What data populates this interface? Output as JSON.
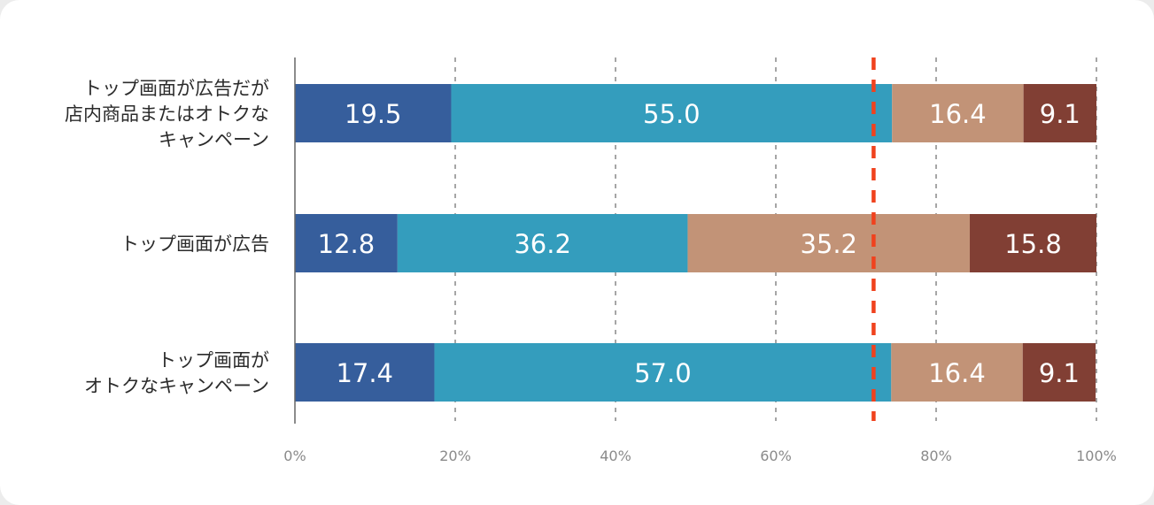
{
  "chart_data": {
    "type": "bar",
    "orientation": "horizontal",
    "stacked": true,
    "categories": [
      [
        "トップ画面が広告だが",
        "店内商品またはオトクな",
        "キャンペーン"
      ],
      [
        "トップ画面が広告"
      ],
      [
        "トップ画面が",
        "オトクなキャンペーン"
      ]
    ],
    "series": [
      {
        "color": "#365e9c",
        "values": [
          19.5,
          12.8,
          17.4
        ]
      },
      {
        "color": "#349dbd",
        "values": [
          55.0,
          36.2,
          57.0
        ]
      },
      {
        "color": "#c29377",
        "values": [
          16.4,
          35.2,
          16.4
        ]
      },
      {
        "color": "#813f34",
        "values": [
          9.1,
          15.8,
          9.1
        ]
      }
    ],
    "xlim": [
      0,
      100
    ],
    "x_ticks": [
      0,
      20,
      40,
      60,
      80,
      100
    ],
    "x_tick_labels": [
      "0%",
      "20%",
      "40%",
      "60%",
      "80%",
      "100%"
    ],
    "reference_line": {
      "x": 72.2,
      "color": "#f0421e",
      "style": "dashed"
    },
    "grid": "vertical-dashed",
    "legend": "none"
  }
}
